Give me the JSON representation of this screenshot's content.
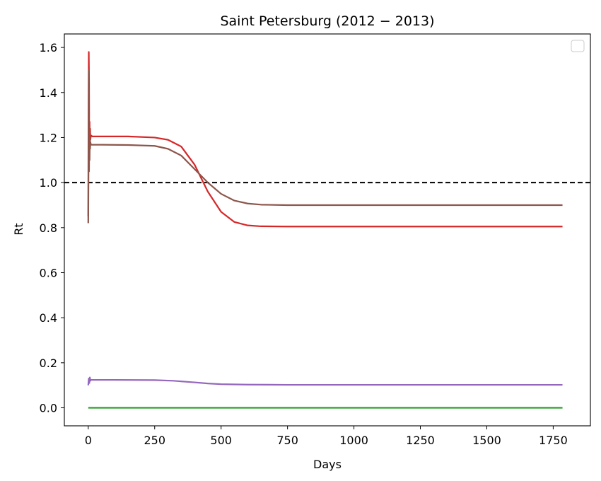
{
  "chart_data": {
    "type": "line",
    "title": "Saint Petersburg (2012 − 2013)",
    "xlabel": "Days",
    "ylabel": "Rt",
    "xlim": [
      -90,
      1890
    ],
    "ylim": [
      -0.08,
      1.66
    ],
    "xticks": [
      0,
      250,
      500,
      750,
      1000,
      1250,
      1500,
      1750
    ],
    "xtick_labels": [
      "0",
      "250",
      "500",
      "750",
      "1000",
      "1250",
      "1500",
      "1750"
    ],
    "yticks": [
      0.0,
      0.2,
      0.4,
      0.6,
      0.8,
      1.0,
      1.2,
      1.4,
      1.6
    ],
    "ytick_labels": [
      "0.0",
      "0.2",
      "0.4",
      "0.6",
      "0.8",
      "1.0",
      "1.2",
      "1.4",
      "1.6"
    ],
    "grid": false,
    "legend": "top-right (empty)",
    "reference_line": {
      "y": 1.0,
      "style": "dashed",
      "color": "#000000"
    },
    "series": [
      {
        "color": "#2ca02c",
        "x": [
          0,
          250,
          500,
          750,
          1000,
          1250,
          1500,
          1785
        ],
        "y": [
          0,
          0,
          0,
          0,
          0,
          0,
          0,
          0
        ]
      },
      {
        "color": "#9467bd",
        "x": [
          0,
          2,
          4,
          6,
          8,
          10,
          20,
          100,
          250,
          320,
          400,
          450,
          500,
          600,
          750,
          1000,
          1500,
          1785
        ],
        "y": [
          0.1,
          0.13,
          0.11,
          0.135,
          0.12,
          0.124,
          0.124,
          0.124,
          0.123,
          0.12,
          0.113,
          0.108,
          0.105,
          0.103,
          0.102,
          0.102,
          0.102,
          0.102
        ]
      },
      {
        "color": "#d62728",
        "x": [
          0,
          1,
          2,
          3,
          4,
          5,
          6,
          7,
          8,
          10,
          15,
          50,
          150,
          250,
          300,
          350,
          400,
          450,
          500,
          550,
          600,
          650,
          750,
          1000,
          1250,
          1500,
          1785
        ],
        "y": [
          0.85,
          1.3,
          1.58,
          1.45,
          1.1,
          1.27,
          1.15,
          1.24,
          1.19,
          1.21,
          1.205,
          1.205,
          1.205,
          1.2,
          1.19,
          1.16,
          1.08,
          0.96,
          0.87,
          0.825,
          0.81,
          0.806,
          0.805,
          0.805,
          0.805,
          0.805,
          0.805
        ]
      },
      {
        "color": "#8c564b",
        "x": [
          0,
          1,
          2,
          3,
          4,
          5,
          6,
          7,
          8,
          10,
          15,
          50,
          150,
          250,
          300,
          350,
          400,
          450,
          500,
          550,
          600,
          650,
          750,
          1000,
          1250,
          1500,
          1785
        ],
        "y": [
          0.82,
          1.1,
          1.5,
          1.05,
          1.25,
          1.1,
          1.2,
          1.15,
          1.18,
          1.168,
          1.168,
          1.168,
          1.167,
          1.163,
          1.15,
          1.12,
          1.06,
          1.0,
          0.95,
          0.92,
          0.907,
          0.902,
          0.9,
          0.9,
          0.9,
          0.9,
          0.9
        ]
      }
    ]
  }
}
